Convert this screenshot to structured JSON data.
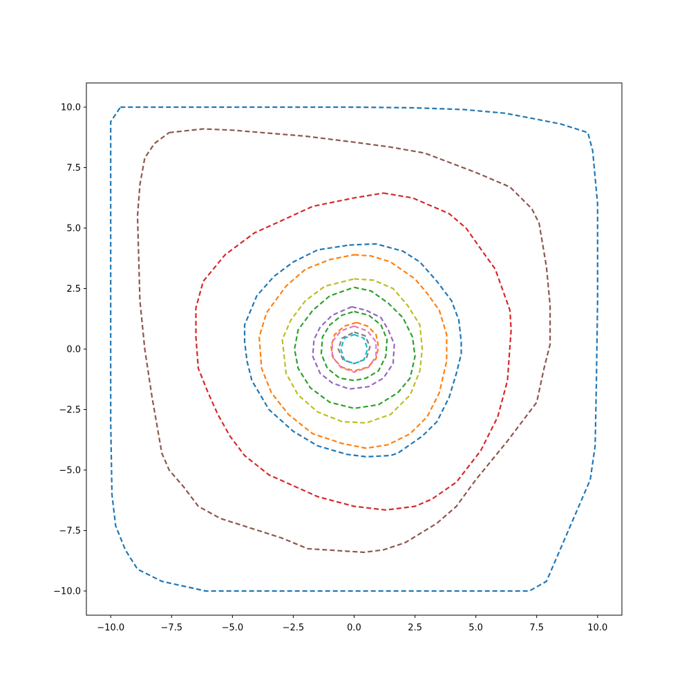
{
  "chart_data": {
    "type": "line",
    "title": "",
    "xlabel": "",
    "ylabel": "",
    "xlim": [
      -11,
      11
    ],
    "ylim": [
      -11,
      11
    ],
    "grid": false,
    "legend": "none",
    "line_style": "dashed",
    "x_ticks": [
      -10,
      -7.5,
      -5,
      -2.5,
      0,
      2.5,
      5,
      7.5,
      10
    ],
    "y_ticks": [
      -10,
      -7.5,
      -5,
      -2.5,
      0,
      2.5,
      5,
      7.5,
      10
    ],
    "x_tick_labels": [
      "−10.0",
      "−7.5",
      "−5.0",
      "−2.5",
      "0.0",
      "2.5",
      "5.0",
      "7.5",
      "10.0"
    ],
    "y_tick_labels": [
      "−10.0",
      "−7.5",
      "−5.0",
      "−2.5",
      "0.0",
      "2.5",
      "5.0",
      "7.5",
      "10.0"
    ],
    "series": [
      {
        "color": "#1f77b4",
        "points": [
          [
            -9.6,
            10.0
          ],
          [
            -5.0,
            10.0
          ],
          [
            0.0,
            10.0
          ],
          [
            2.5,
            9.97
          ],
          [
            4.5,
            9.9
          ],
          [
            6.2,
            9.75
          ],
          [
            7.5,
            9.5
          ],
          [
            8.5,
            9.3
          ],
          [
            9.6,
            8.95
          ],
          [
            9.8,
            8.2
          ],
          [
            10.0,
            6.0
          ],
          [
            10.0,
            2.0
          ],
          [
            9.95,
            -1.5
          ],
          [
            9.9,
            -4.0
          ],
          [
            9.7,
            -5.4
          ],
          [
            8.8,
            -7.5
          ],
          [
            7.9,
            -9.6
          ],
          [
            7.2,
            -10.0
          ],
          [
            5.0,
            -10.0
          ],
          [
            0.0,
            -10.0
          ],
          [
            -3.0,
            -10.0
          ],
          [
            -6.1,
            -10.0
          ],
          [
            -7.9,
            -9.6
          ],
          [
            -8.9,
            -9.1
          ],
          [
            -9.4,
            -8.3
          ],
          [
            -9.8,
            -7.3
          ],
          [
            -9.95,
            -6.0
          ],
          [
            -10.0,
            -3.0
          ],
          [
            -10.0,
            0.0
          ],
          [
            -10.0,
            5.0
          ],
          [
            -10.0,
            9.4
          ],
          [
            -9.6,
            10.0
          ]
        ]
      },
      {
        "color": "#8c564b",
        "points": [
          [
            -7.6,
            8.95
          ],
          [
            -6.2,
            9.1
          ],
          [
            -5.0,
            9.05
          ],
          [
            -2.0,
            8.8
          ],
          [
            0.0,
            8.55
          ],
          [
            1.5,
            8.35
          ],
          [
            2.9,
            8.1
          ],
          [
            5.0,
            7.3
          ],
          [
            6.4,
            6.7
          ],
          [
            7.3,
            5.8
          ],
          [
            7.6,
            5.2
          ],
          [
            7.9,
            3.4
          ],
          [
            8.05,
            1.8
          ],
          [
            8.05,
            0.2
          ],
          [
            7.8,
            -0.8
          ],
          [
            7.5,
            -2.2
          ],
          [
            6.3,
            -3.8
          ],
          [
            5.0,
            -5.4
          ],
          [
            4.2,
            -6.5
          ],
          [
            3.4,
            -7.2
          ],
          [
            2.1,
            -8.0
          ],
          [
            1.2,
            -8.3
          ],
          [
            0.4,
            -8.4
          ],
          [
            -1.9,
            -8.25
          ],
          [
            -3.0,
            -7.8
          ],
          [
            -5.5,
            -7.0
          ],
          [
            -6.4,
            -6.5
          ],
          [
            -7.0,
            -5.7
          ],
          [
            -7.6,
            -5.0
          ],
          [
            -7.9,
            -4.3
          ],
          [
            -8.3,
            -2.0
          ],
          [
            -8.6,
            0.0
          ],
          [
            -8.8,
            2.0
          ],
          [
            -8.9,
            5.5
          ],
          [
            -8.8,
            6.8
          ],
          [
            -8.6,
            7.9
          ],
          [
            -8.2,
            8.5
          ],
          [
            -7.6,
            8.95
          ]
        ]
      },
      {
        "color": "#d62728",
        "points": [
          [
            1.2,
            6.45
          ],
          [
            2.4,
            6.25
          ],
          [
            3.9,
            5.6
          ],
          [
            4.6,
            5.0
          ],
          [
            5.3,
            4.0
          ],
          [
            5.8,
            3.3
          ],
          [
            6.4,
            1.6
          ],
          [
            6.45,
            0.8
          ],
          [
            6.3,
            -1.3
          ],
          [
            5.9,
            -2.8
          ],
          [
            5.2,
            -4.2
          ],
          [
            4.2,
            -5.5
          ],
          [
            3.2,
            -6.2
          ],
          [
            2.5,
            -6.5
          ],
          [
            1.3,
            -6.65
          ],
          [
            0.0,
            -6.5
          ],
          [
            -1.5,
            -6.1
          ],
          [
            -3.5,
            -5.2
          ],
          [
            -4.5,
            -4.4
          ],
          [
            -5.1,
            -3.6
          ],
          [
            -5.6,
            -2.7
          ],
          [
            -6.0,
            -1.8
          ],
          [
            -6.4,
            -0.8
          ],
          [
            -6.5,
            0.5
          ],
          [
            -6.5,
            1.7
          ],
          [
            -6.2,
            2.8
          ],
          [
            -5.3,
            3.9
          ],
          [
            -4.1,
            4.8
          ],
          [
            -3.0,
            5.3
          ],
          [
            -1.7,
            5.9
          ],
          [
            0.0,
            6.25
          ],
          [
            1.2,
            6.45
          ]
        ]
      },
      {
        "color": "#1f77b4",
        "points": [
          [
            -0.2,
            4.3
          ],
          [
            0.9,
            4.35
          ],
          [
            2.0,
            4.05
          ],
          [
            2.7,
            3.6
          ],
          [
            3.4,
            2.8
          ],
          [
            4.0,
            2.0
          ],
          [
            4.3,
            1.2
          ],
          [
            4.4,
            0.3
          ],
          [
            4.4,
            -0.2
          ],
          [
            4.2,
            -1.0
          ],
          [
            3.9,
            -2.0
          ],
          [
            3.4,
            -3.0
          ],
          [
            2.8,
            -3.6
          ],
          [
            1.8,
            -4.3
          ],
          [
            1.5,
            -4.4
          ],
          [
            0.5,
            -4.45
          ],
          [
            -0.3,
            -4.35
          ],
          [
            -1.5,
            -4.0
          ],
          [
            -2.5,
            -3.4
          ],
          [
            -3.5,
            -2.5
          ],
          [
            -4.2,
            -1.3
          ],
          [
            -4.4,
            -0.5
          ],
          [
            -4.5,
            0.3
          ],
          [
            -4.5,
            1.0
          ],
          [
            -4.0,
            2.2
          ],
          [
            -3.3,
            3.0
          ],
          [
            -2.5,
            3.6
          ],
          [
            -1.5,
            4.1
          ],
          [
            -0.2,
            4.3
          ]
        ]
      },
      {
        "color": "#ff7f0e",
        "points": [
          [
            0.0,
            3.9
          ],
          [
            0.7,
            3.85
          ],
          [
            1.5,
            3.6
          ],
          [
            2.5,
            2.9
          ],
          [
            3.0,
            2.3
          ],
          [
            3.5,
            1.6
          ],
          [
            3.8,
            0.6
          ],
          [
            3.8,
            -0.5
          ],
          [
            3.5,
            -1.8
          ],
          [
            3.0,
            -2.8
          ],
          [
            2.3,
            -3.5
          ],
          [
            1.4,
            -3.95
          ],
          [
            0.5,
            -4.1
          ],
          [
            -0.5,
            -3.9
          ],
          [
            -1.7,
            -3.5
          ],
          [
            -2.7,
            -2.7
          ],
          [
            -3.4,
            -1.8
          ],
          [
            -3.8,
            -0.8
          ],
          [
            -3.9,
            0.5
          ],
          [
            -3.6,
            1.5
          ],
          [
            -2.8,
            2.6
          ],
          [
            -2.0,
            3.3
          ],
          [
            -1.0,
            3.7
          ],
          [
            0.0,
            3.9
          ]
        ]
      },
      {
        "color": "#bcbd22",
        "points": [
          [
            0.0,
            2.9
          ],
          [
            0.8,
            2.85
          ],
          [
            1.6,
            2.5
          ],
          [
            2.2,
            1.8
          ],
          [
            2.7,
            1.0
          ],
          [
            2.8,
            0.0
          ],
          [
            2.7,
            -0.9
          ],
          [
            2.3,
            -1.9
          ],
          [
            1.5,
            -2.7
          ],
          [
            0.5,
            -3.05
          ],
          [
            -0.5,
            -3.0
          ],
          [
            -1.5,
            -2.6
          ],
          [
            -2.3,
            -1.9
          ],
          [
            -2.8,
            -1.0
          ],
          [
            -2.95,
            0.4
          ],
          [
            -2.6,
            1.2
          ],
          [
            -2.0,
            2.0
          ],
          [
            -1.2,
            2.6
          ],
          [
            0.0,
            2.9
          ]
        ]
      },
      {
        "color": "#2ca02c",
        "points": [
          [
            0.0,
            2.55
          ],
          [
            0.7,
            2.4
          ],
          [
            1.4,
            1.9
          ],
          [
            2.0,
            1.3
          ],
          [
            2.4,
            0.5
          ],
          [
            2.5,
            -0.3
          ],
          [
            2.3,
            -1.2
          ],
          [
            1.8,
            -1.8
          ],
          [
            1.0,
            -2.3
          ],
          [
            0.0,
            -2.45
          ],
          [
            -1.0,
            -2.2
          ],
          [
            -1.8,
            -1.6
          ],
          [
            -2.3,
            -0.8
          ],
          [
            -2.45,
            0.0
          ],
          [
            -2.3,
            0.8
          ],
          [
            -1.7,
            1.6
          ],
          [
            -1.0,
            2.2
          ],
          [
            0.0,
            2.55
          ]
        ]
      },
      {
        "color": "#9467bd",
        "points": [
          [
            -0.1,
            1.75
          ],
          [
            0.5,
            1.6
          ],
          [
            1.1,
            1.3
          ],
          [
            1.4,
            0.8
          ],
          [
            1.65,
            0.2
          ],
          [
            1.6,
            -0.6
          ],
          [
            1.2,
            -1.2
          ],
          [
            0.6,
            -1.55
          ],
          [
            -0.2,
            -1.65
          ],
          [
            -0.9,
            -1.4
          ],
          [
            -1.4,
            -1.0
          ],
          [
            -1.7,
            -0.3
          ],
          [
            -1.65,
            0.4
          ],
          [
            -1.4,
            0.9
          ],
          [
            -0.9,
            1.4
          ],
          [
            -0.1,
            1.75
          ]
        ]
      },
      {
        "color": "#2ca02c",
        "points": [
          [
            0.0,
            1.55
          ],
          [
            0.6,
            1.4
          ],
          [
            1.1,
            1.0
          ],
          [
            1.35,
            0.4
          ],
          [
            1.3,
            -0.3
          ],
          [
            1.0,
            -0.9
          ],
          [
            0.5,
            -1.2
          ],
          [
            0.0,
            -1.3
          ],
          [
            -0.6,
            -1.2
          ],
          [
            -1.1,
            -0.8
          ],
          [
            -1.35,
            -0.2
          ],
          [
            -1.3,
            0.5
          ],
          [
            -1.0,
            1.0
          ],
          [
            -0.5,
            1.4
          ],
          [
            0.0,
            1.55
          ]
        ]
      },
      {
        "color": "#ff7f0e",
        "points": [
          [
            0.1,
            1.1
          ],
          [
            0.55,
            0.95
          ],
          [
            0.9,
            0.6
          ],
          [
            1.0,
            0.1
          ],
          [
            0.9,
            -0.4
          ],
          [
            0.55,
            -0.75
          ],
          [
            0.0,
            -0.9
          ],
          [
            -0.5,
            -0.75
          ],
          [
            -0.85,
            -0.4
          ],
          [
            -0.95,
            0.1
          ],
          [
            -0.8,
            0.6
          ],
          [
            -0.4,
            0.95
          ],
          [
            0.1,
            1.1
          ]
        ]
      },
      {
        "color": "#e377c2",
        "points": [
          [
            0.0,
            0.95
          ],
          [
            0.55,
            0.75
          ],
          [
            0.9,
            0.3
          ],
          [
            0.9,
            -0.3
          ],
          [
            0.6,
            -0.75
          ],
          [
            0.0,
            -0.95
          ],
          [
            -0.55,
            -0.75
          ],
          [
            -0.9,
            -0.3
          ],
          [
            -0.9,
            0.3
          ],
          [
            -0.55,
            0.75
          ],
          [
            0.0,
            0.95
          ]
        ]
      },
      {
        "color": "#7f7f7f",
        "points": [
          [
            0.0,
            0.7
          ],
          [
            0.45,
            0.55
          ],
          [
            0.65,
            0.1
          ],
          [
            0.5,
            -0.4
          ],
          [
            0.0,
            -0.6
          ],
          [
            -0.45,
            -0.45
          ],
          [
            -0.65,
            0.0
          ],
          [
            -0.5,
            0.45
          ],
          [
            0.0,
            0.7
          ]
        ]
      },
      {
        "color": "#17becf",
        "points": [
          [
            0.0,
            0.6
          ],
          [
            0.4,
            0.45
          ],
          [
            0.55,
            0.0
          ],
          [
            0.4,
            -0.45
          ],
          [
            0.0,
            -0.6
          ],
          [
            -0.4,
            -0.45
          ],
          [
            -0.55,
            0.0
          ],
          [
            -0.4,
            0.45
          ],
          [
            0.0,
            0.6
          ]
        ]
      }
    ]
  }
}
